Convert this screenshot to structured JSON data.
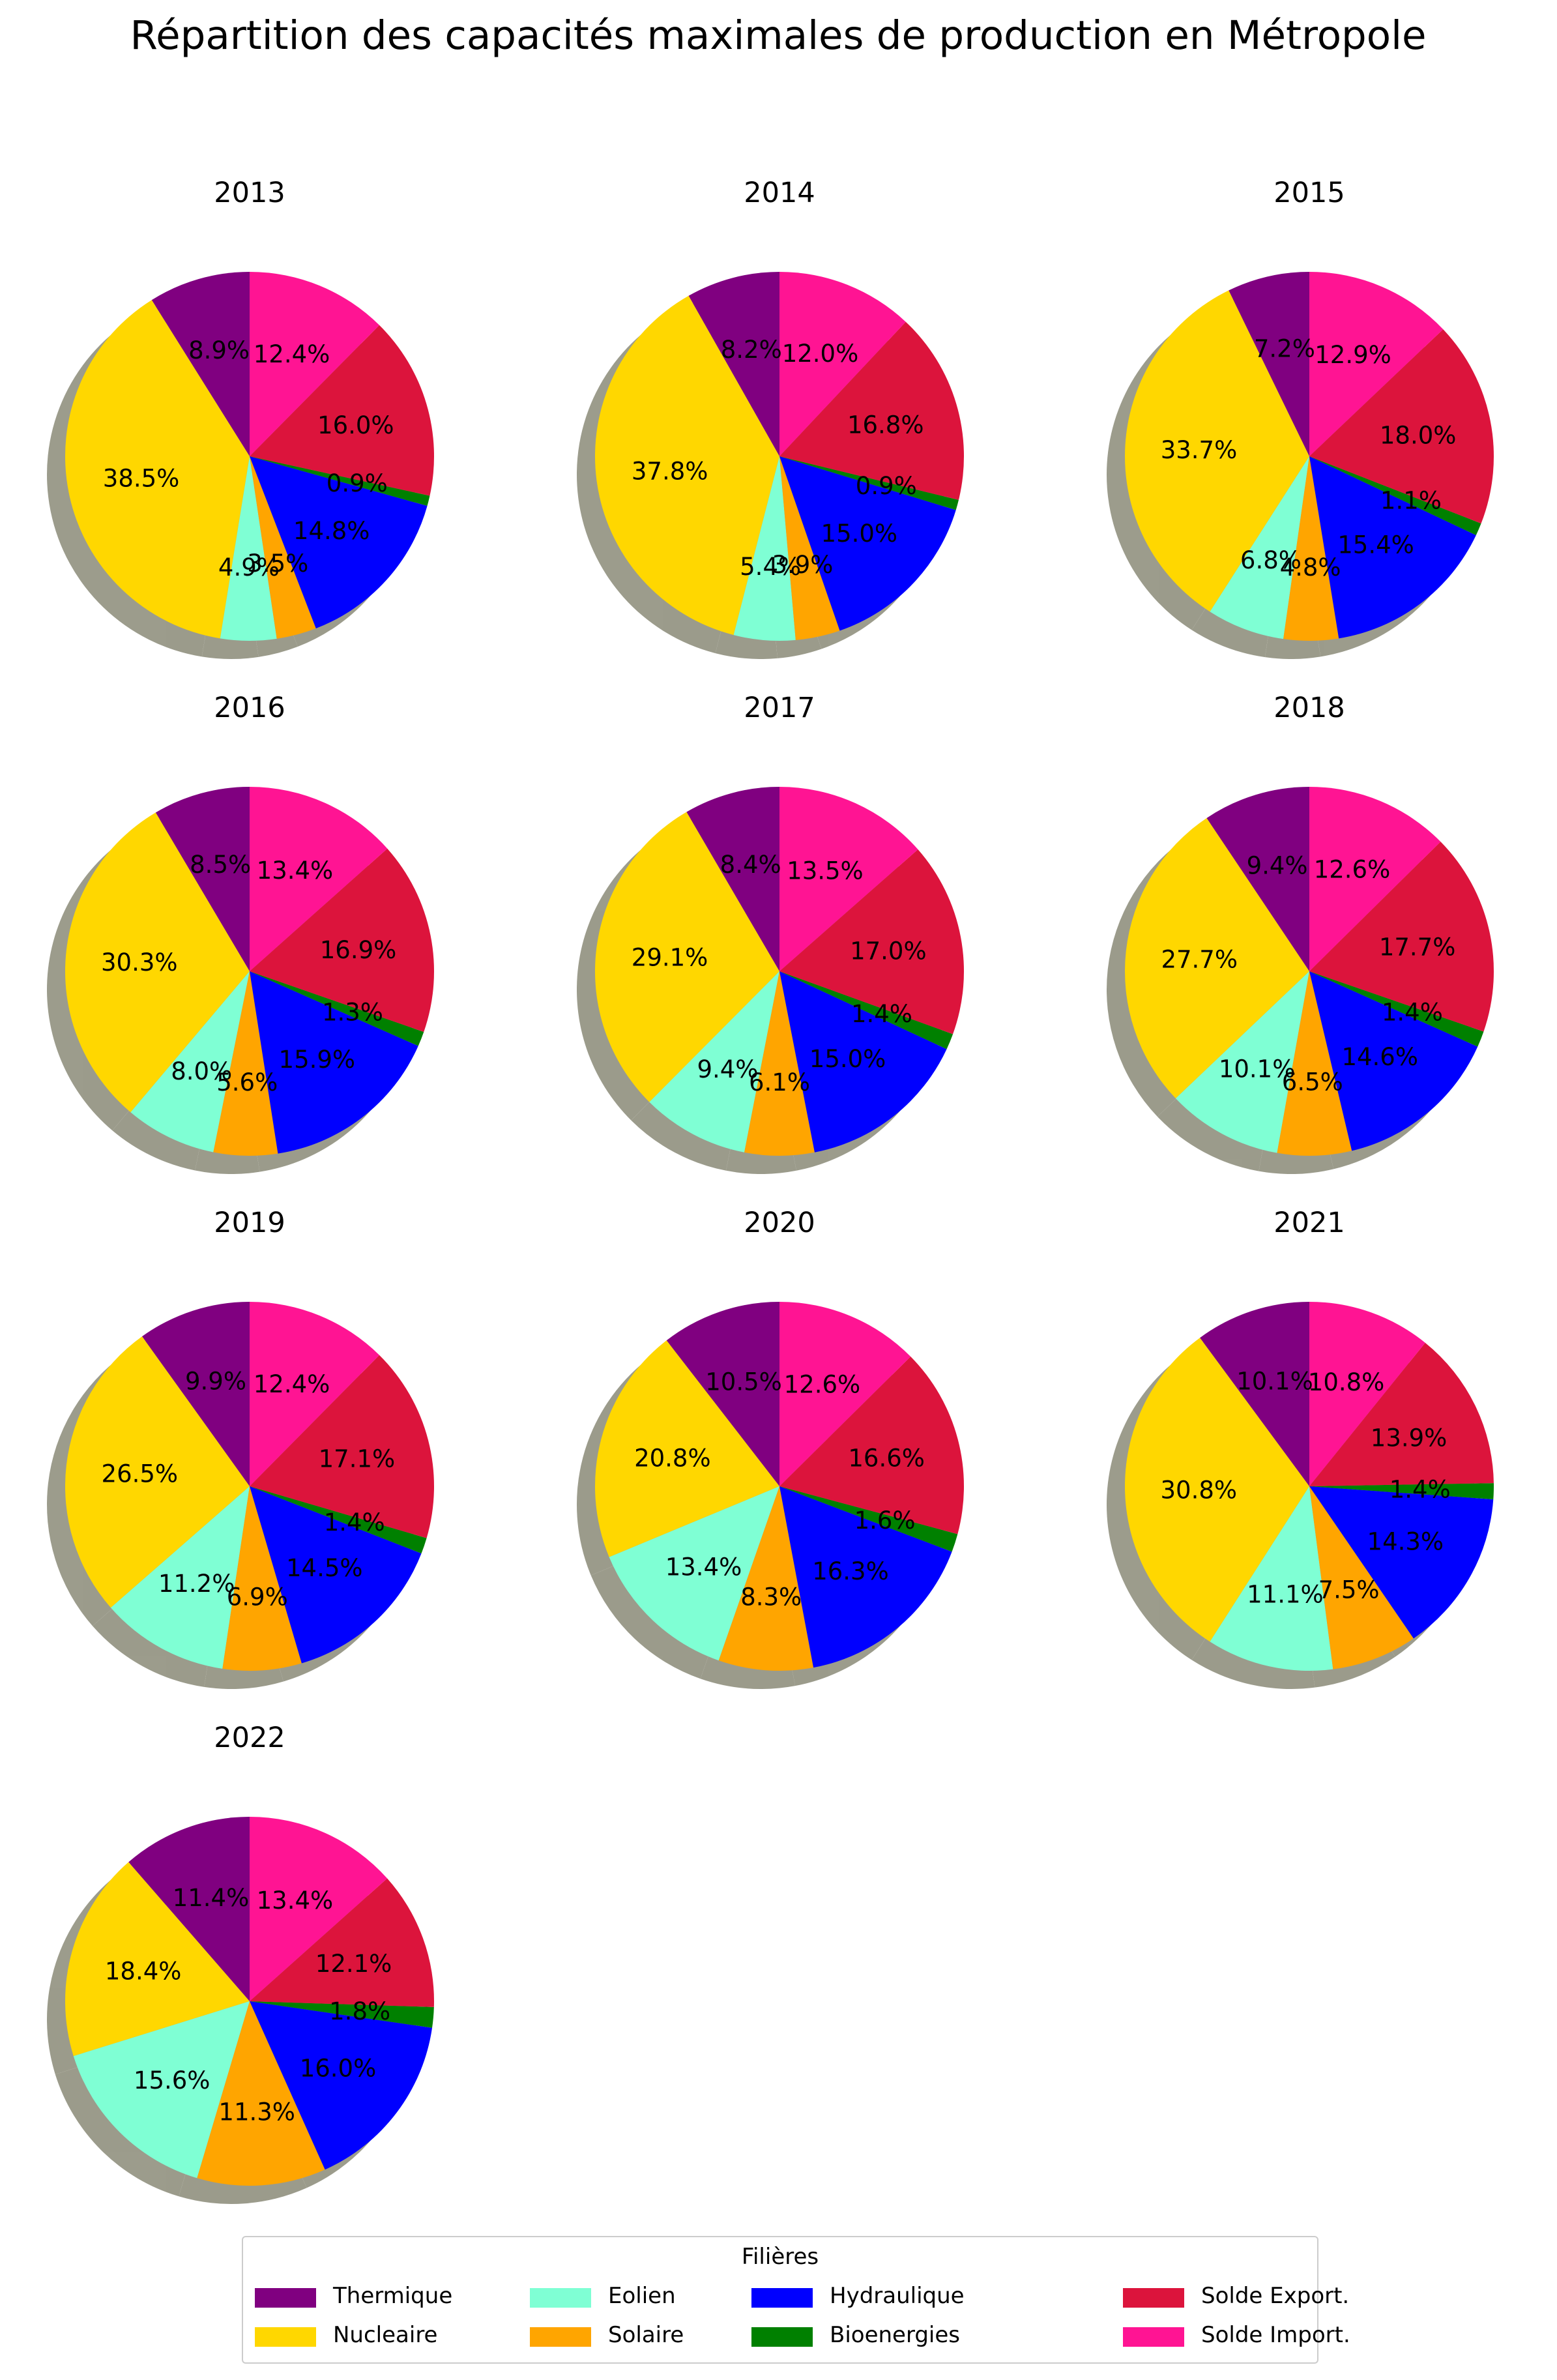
{
  "title": "Répartition des capacités maximales de production en Métropole",
  "legend": {
    "title": "Filières"
  },
  "colors": {
    "Thermique": "#800080",
    "Nucleaire": "#ffd700",
    "Eolien": "#7fffd4",
    "Solaire": "#ffa500",
    "Hydraulique": "#0000ff",
    "Bioenergies": "#008000",
    "Solde Export.": "#dc143c",
    "Solde Import.": "#ff1493"
  },
  "chart_data": {
    "type": "pie",
    "series": [
      "Thermique",
      "Nucleaire",
      "Eolien",
      "Solaire",
      "Hydraulique",
      "Bioenergies",
      "Solde Export.",
      "Solde Import."
    ],
    "legend_placement": "bottom-center",
    "pies": [
      {
        "year": "2013",
        "values": [
          8.9,
          38.5,
          4.9,
          3.5,
          14.8,
          0.9,
          16.0,
          12.4
        ]
      },
      {
        "year": "2014",
        "values": [
          8.2,
          37.8,
          5.4,
          3.9,
          15.0,
          0.9,
          16.8,
          12.0
        ]
      },
      {
        "year": "2015",
        "values": [
          7.2,
          33.7,
          6.8,
          4.8,
          15.4,
          1.1,
          18.0,
          12.9
        ]
      },
      {
        "year": "2016",
        "values": [
          8.5,
          30.3,
          8.0,
          5.6,
          15.9,
          1.3,
          16.9,
          13.4
        ]
      },
      {
        "year": "2017",
        "values": [
          8.4,
          29.1,
          9.4,
          6.1,
          15.0,
          1.4,
          17.0,
          13.5
        ]
      },
      {
        "year": "2018",
        "values": [
          9.4,
          27.7,
          10.1,
          6.5,
          14.6,
          1.4,
          17.7,
          12.6
        ]
      },
      {
        "year": "2019",
        "values": [
          9.9,
          26.5,
          11.2,
          6.9,
          14.5,
          1.4,
          17.1,
          12.4
        ]
      },
      {
        "year": "2020",
        "values": [
          10.5,
          20.8,
          13.4,
          8.3,
          16.3,
          1.6,
          16.6,
          12.6
        ]
      },
      {
        "year": "2021",
        "values": [
          10.1,
          30.8,
          11.1,
          7.5,
          14.3,
          1.4,
          13.9,
          10.8
        ]
      },
      {
        "year": "2022",
        "values": [
          11.4,
          18.4,
          15.6,
          11.3,
          16.0,
          1.8,
          12.1,
          13.4
        ]
      }
    ]
  }
}
